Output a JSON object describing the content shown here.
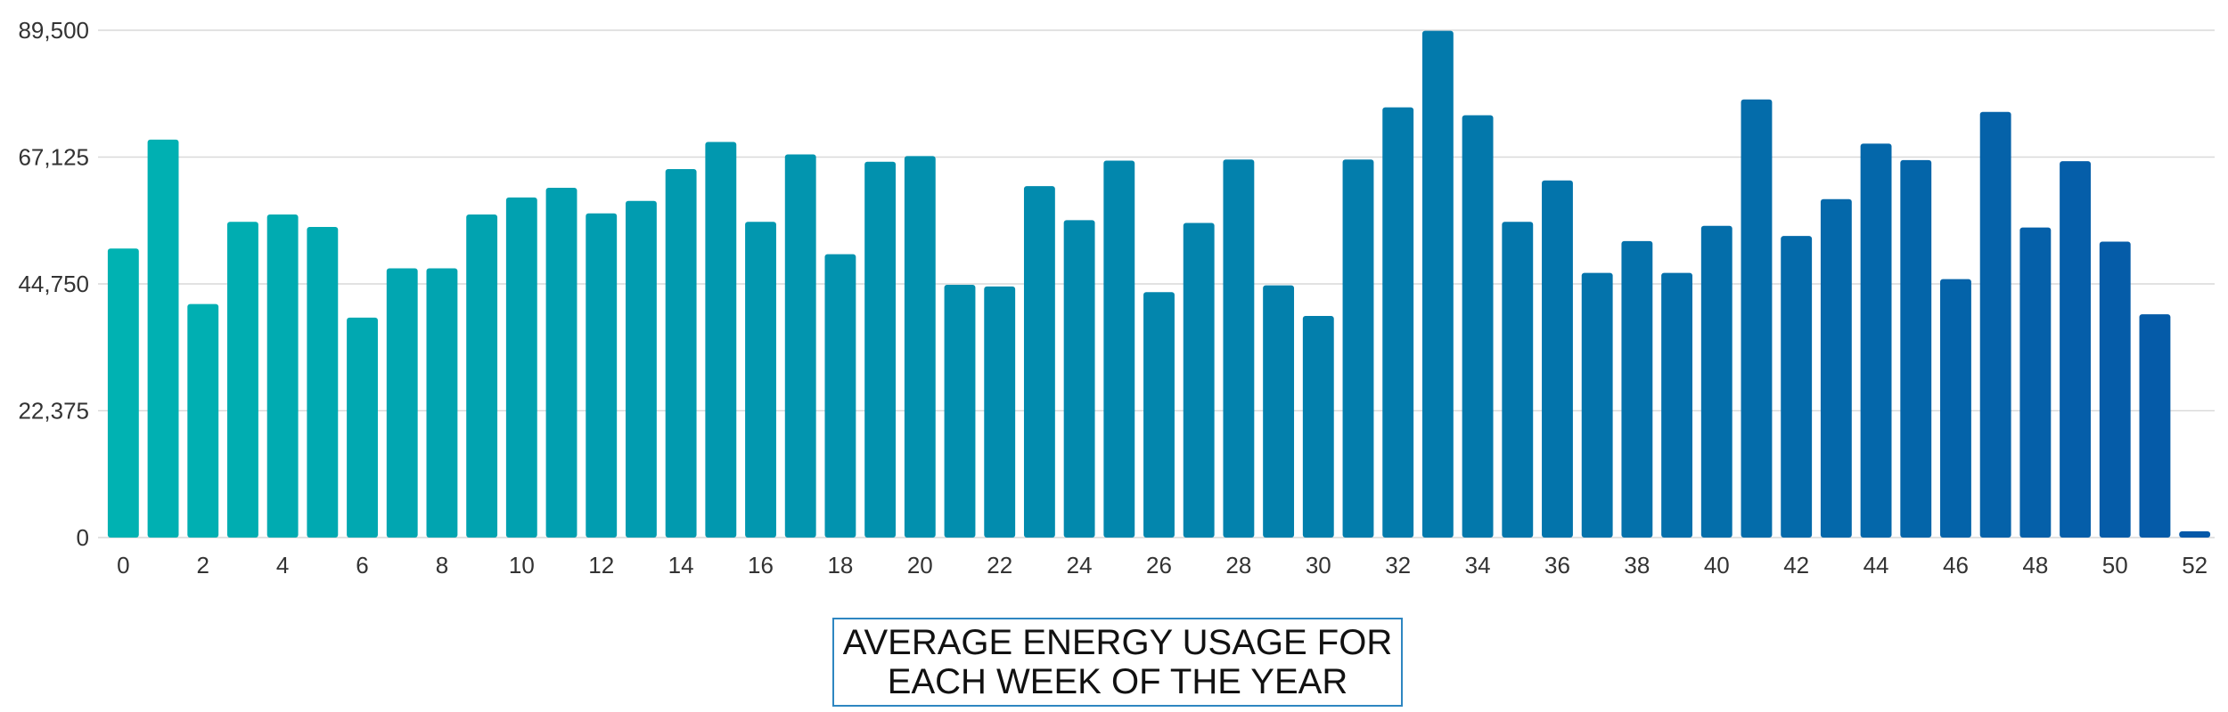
{
  "chart_data": {
    "type": "bar",
    "title_lines": [
      "AVERAGE ENERGY USAGE FOR",
      "EACH WEEK OF THE YEAR"
    ],
    "xlabel": "",
    "ylabel": "",
    "ylim": [
      0,
      89500
    ],
    "yticks": [
      0,
      22375,
      44750,
      67125,
      89500
    ],
    "ytick_labels": [
      "0",
      "22,375",
      "44,750",
      "67,125",
      "89,500"
    ],
    "xtick_labels": [
      "0",
      "2",
      "4",
      "6",
      "8",
      "10",
      "12",
      "14",
      "16",
      "18",
      "20",
      "22",
      "24",
      "26",
      "28",
      "30",
      "32",
      "34",
      "36",
      "38",
      "40",
      "42",
      "44",
      "46",
      "48",
      "50",
      "52"
    ],
    "grid": true,
    "legend": "none",
    "color_start": "#00b2b2",
    "color_end": "#0559a8",
    "categories": [
      "0",
      "1",
      "2",
      "3",
      "4",
      "5",
      "6",
      "7",
      "8",
      "9",
      "10",
      "11",
      "12",
      "13",
      "14",
      "15",
      "16",
      "17",
      "18",
      "19",
      "20",
      "21",
      "22",
      "23",
      "24",
      "25",
      "26",
      "27",
      "28",
      "29",
      "30",
      "31",
      "32",
      "33",
      "34",
      "35",
      "36",
      "37",
      "38",
      "39",
      "40",
      "41",
      "42",
      "43",
      "44",
      "45",
      "46",
      "47",
      "48",
      "49",
      "50",
      "51",
      "52"
    ],
    "values": [
      51000,
      70200,
      41200,
      55700,
      57000,
      54800,
      38800,
      47500,
      47500,
      57000,
      60000,
      61700,
      57200,
      59400,
      65000,
      69800,
      55700,
      67600,
      50000,
      66300,
      67300,
      44600,
      44300,
      62000,
      56000,
      66500,
      43300,
      55500,
      66700,
      44500,
      39100,
      66700,
      75900,
      89400,
      74500,
      55700,
      63000,
      46700,
      52300,
      46700,
      55000,
      77300,
      53200,
      59700,
      69500,
      66600,
      45600,
      75100,
      54700,
      66400,
      52200,
      39400,
      1100
    ]
  }
}
